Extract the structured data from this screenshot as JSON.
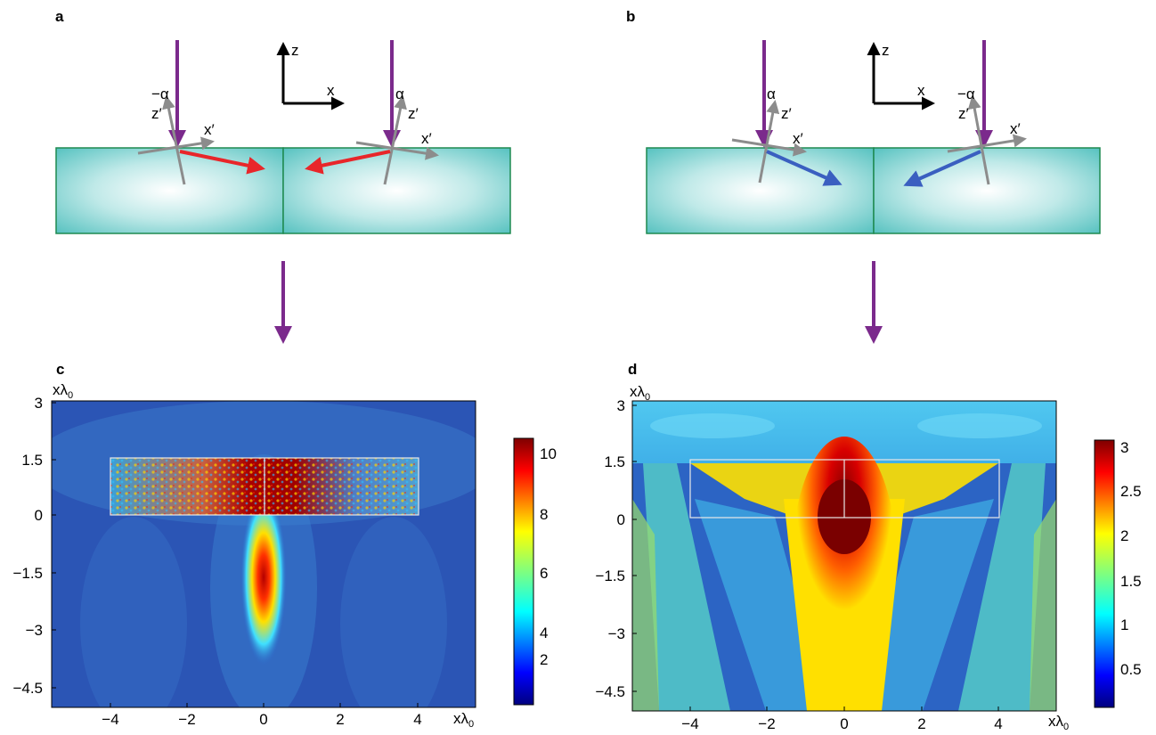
{
  "panels": {
    "a": {
      "letter": "a",
      "axis_labels": {
        "z": "z",
        "x": "x"
      },
      "left_element": {
        "angle_label": "−α",
        "zprime": "z′",
        "xprime": "x′"
      },
      "right_element": {
        "angle_label": "α",
        "zprime": "z′",
        "xprime": "x′"
      },
      "refracted_arrow_color": "#e8262a"
    },
    "b": {
      "letter": "b",
      "axis_labels": {
        "z": "z",
        "x": "x"
      },
      "left_element": {
        "angle_label": "α",
        "zprime": "z′",
        "xprime": "x′"
      },
      "right_element": {
        "angle_label": "−α",
        "zprime": "z′",
        "xprime": "x′"
      },
      "refracted_arrow_color": "#3a5fc0"
    },
    "c": {
      "letter": "c",
      "xunit": "xλ",
      "xunit_sub": "0",
      "yunit": "xλ",
      "yunit_sub": "0",
      "xticks": [
        "−4",
        "−2",
        "0",
        "2",
        "4"
      ],
      "yticks": [
        "3",
        "1.5",
        "0",
        "−1.5",
        "−3",
        "−4.5"
      ],
      "colorbar_ticks": [
        "10",
        "8",
        "6",
        "4",
        "2"
      ]
    },
    "d": {
      "letter": "d",
      "xunit": "xλ",
      "xunit_sub": "0",
      "yunit": "xλ",
      "yunit_sub": "0",
      "xticks": [
        "−4",
        "−2",
        "0",
        "2",
        "4"
      ],
      "yticks": [
        "3",
        "1.5",
        "0",
        "−1.5",
        "−3",
        "−4.5"
      ],
      "colorbar_ticks": [
        "3",
        "2.5",
        "2",
        "1.5",
        "1",
        "0.5"
      ]
    }
  },
  "colors": {
    "incident_arrow": "#7b2a8c",
    "local_axes": "#8c8c8c",
    "element_fill": "#5cc5c3",
    "element_border": "#1e8a50",
    "axes_black": "#000000"
  }
}
